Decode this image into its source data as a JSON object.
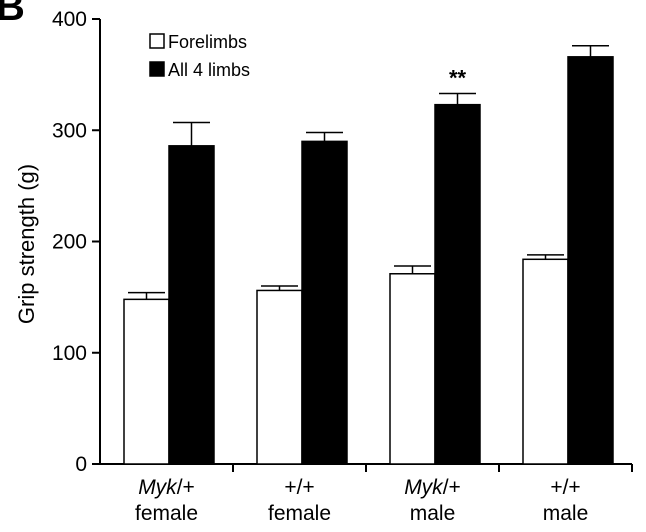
{
  "panel_label": "B",
  "chart_data": {
    "type": "bar",
    "ylabel": "Grip strength (g)",
    "ylim": [
      0,
      400
    ],
    "yticks": [
      0,
      100,
      200,
      300,
      400
    ],
    "categories": [
      {
        "line1_italic": "Myk",
        "line1_rest": "/+",
        "line2": "female"
      },
      {
        "line1_italic": "",
        "line1_rest": "+/+",
        "line2": "female"
      },
      {
        "line1_italic": "Myk",
        "line1_rest": "/+",
        "line2": "male"
      },
      {
        "line1_italic": "",
        "line1_rest": "+/+",
        "line2": "male"
      }
    ],
    "series": [
      {
        "name": "Forelimbs",
        "fill": "#ffffff",
        "values": [
          148,
          156,
          171,
          184
        ],
        "errors": [
          6,
          4,
          7,
          4
        ]
      },
      {
        "name": "All 4 limbs",
        "fill": "#000000",
        "values": [
          286,
          290,
          323,
          366
        ],
        "errors": [
          21,
          8,
          10,
          10
        ]
      }
    ],
    "annotations": [
      {
        "category_index": 2,
        "series_index": 1,
        "text": "**"
      }
    ],
    "legend_position": "top-left",
    "grid": false
  }
}
